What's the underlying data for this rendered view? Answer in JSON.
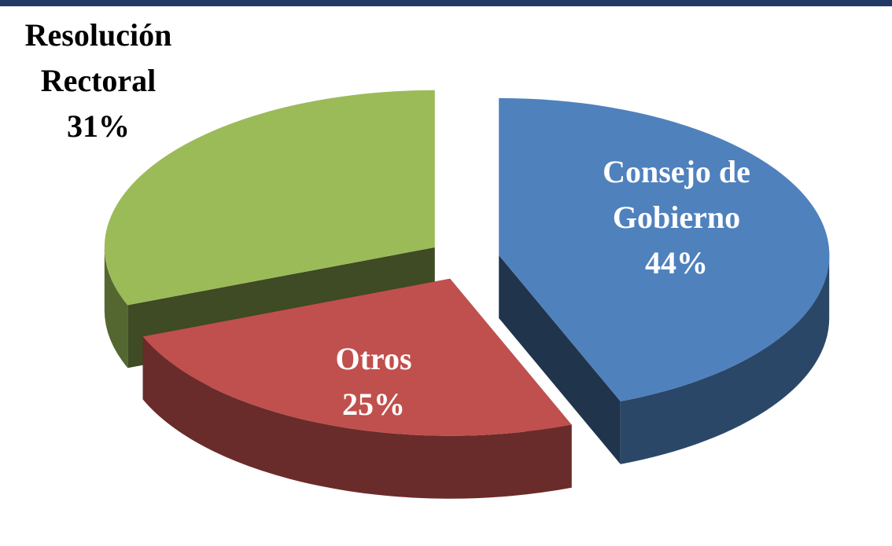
{
  "chart_data": {
    "type": "pie3d",
    "categories": [
      "Consejo de Gobierno",
      "Otros",
      "Resolución Rectoral"
    ],
    "values": [
      44,
      25,
      31
    ],
    "value_labels": [
      "44%",
      "25%",
      "31%"
    ],
    "colors": [
      "#4f81bd",
      "#c0504d",
      "#9bbb59"
    ]
  }
}
